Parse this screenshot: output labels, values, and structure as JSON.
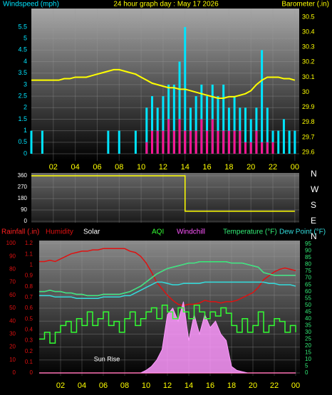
{
  "chart_data": [
    {
      "type": "bar",
      "title": "24 hour graph day : May 17 2026",
      "x": [
        0,
        0.5,
        1,
        1.5,
        2,
        2.5,
        3,
        3.5,
        4,
        4.5,
        5,
        5.5,
        6,
        6.5,
        7,
        7.5,
        8,
        8.5,
        9,
        9.5,
        10,
        10.5,
        11,
        11.5,
        12,
        12.5,
        13,
        13.5,
        14,
        14.5,
        15,
        15.5,
        16,
        16.5,
        17,
        17.5,
        18,
        18.5,
        19,
        19.5,
        20,
        20.5,
        21,
        21.5,
        22,
        22.5,
        23,
        23.5,
        24
      ],
      "xlim": [
        0,
        24.4
      ],
      "xticks": [
        {
          "value": 2,
          "label": "02"
        },
        {
          "value": 4,
          "label": "04"
        },
        {
          "value": 6,
          "label": "06"
        },
        {
          "value": 8,
          "label": "08"
        },
        10,
        12,
        14,
        16,
        18,
        20,
        22,
        {
          "value": 24,
          "label": "00"
        }
      ],
      "ylim": [
        0,
        5.5
      ],
      "yticks": [
        0,
        0.5,
        1,
        1.5,
        2,
        2.5,
        3,
        3.5,
        4,
        4.5,
        5,
        5.5
      ],
      "y2lim": [
        29.6,
        30.5
      ],
      "y2ticks": [
        29.6,
        29.7,
        29.8,
        29.9,
        30,
        30.1,
        30.2,
        30.3,
        30.4,
        30.5
      ],
      "grid": true,
      "series": [
        {
          "name": "Windspeed (mph)",
          "color": "#00e5ff",
          "values": [
            1,
            0,
            1,
            0,
            0,
            0,
            0,
            0,
            0,
            0,
            0,
            0,
            0,
            0,
            1,
            0,
            1,
            0,
            0,
            1,
            0,
            2,
            2.5,
            2,
            2.5,
            3,
            3,
            4,
            5.5,
            2,
            2.5,
            3,
            2.5,
            3,
            2.5,
            3,
            2,
            2.5,
            2,
            2,
            1.5,
            2,
            4.5,
            2,
            1,
            1,
            1.5,
            1,
            1
          ]
        },
        {
          "color": "#ff1493",
          "values": [
            0,
            0,
            0,
            0,
            0,
            0,
            0,
            0,
            0,
            0,
            0,
            0,
            0,
            0,
            0,
            0,
            0,
            0,
            0,
            0,
            0,
            0.5,
            1,
            1,
            1,
            1.5,
            1,
            1.5,
            1,
            1,
            1,
            1.5,
            1,
            1.5,
            1,
            1,
            1,
            1,
            1,
            0.5,
            0.5,
            1,
            0.5,
            0.5,
            0.5,
            0,
            0,
            0,
            0
          ]
        },
        {
          "name": "Barometer (.in)",
          "axis": "y2",
          "color": "#ffff00",
          "values": [
            30.08,
            30.08,
            30.08,
            30.08,
            30.08,
            30.08,
            30.09,
            30.09,
            30.1,
            30.1,
            30.1,
            30.11,
            30.12,
            30.13,
            30.14,
            30.15,
            30.15,
            30.14,
            30.13,
            30.12,
            30.1,
            30.08,
            30.06,
            30.05,
            30.04,
            30.03,
            30.03,
            30.02,
            30.02,
            30.01,
            30,
            29.99,
            29.98,
            29.97,
            29.96,
            29.96,
            29.97,
            29.97,
            29.98,
            29.99,
            30.01,
            30.05,
            30.08,
            30.1,
            30.1,
            30.1,
            30.09,
            30.09,
            30.08
          ]
        }
      ]
    },
    {
      "type": "line",
      "x": [
        0,
        14,
        14,
        24
      ],
      "xlim": [
        0,
        24.4
      ],
      "xticks": [
        2,
        4,
        6,
        8,
        10,
        12,
        14,
        16,
        18,
        20,
        22,
        24
      ],
      "ylim": [
        0,
        360
      ],
      "yticks": [
        0,
        90,
        180,
        270,
        360
      ],
      "y2lim": [
        0,
        360
      ],
      "y2ticks": [
        {
          "value": 0,
          "label": "N"
        },
        {
          "value": 90,
          "label": "E"
        },
        {
          "value": 180,
          "label": "S"
        },
        {
          "value": 270,
          "label": "W"
        },
        {
          "value": 360,
          "label": "N"
        }
      ],
      "grid": true,
      "series": [
        {
          "color": "#ffff00",
          "values": [
            360,
            360,
            80,
            80
          ]
        }
      ]
    },
    {
      "type": "line",
      "x": [
        0,
        0.5,
        1,
        1.5,
        2,
        2.5,
        3,
        3.5,
        4,
        4.5,
        5,
        5.5,
        6,
        6.5,
        7,
        7.5,
        8,
        8.5,
        9,
        9.5,
        10,
        10.5,
        11,
        11.5,
        12,
        12.5,
        13,
        13.5,
        14,
        14.5,
        15,
        15.5,
        16,
        16.5,
        17,
        17.5,
        18,
        18.5,
        19,
        19.5,
        20,
        20.5,
        21,
        21.5,
        22,
        22.5,
        23,
        23.5,
        24
      ],
      "xlim": [
        0,
        24.4
      ],
      "xticks": [
        {
          "value": 2,
          "label": "02"
        },
        {
          "value": 4,
          "label": "04"
        },
        {
          "value": 6,
          "label": "06"
        },
        {
          "value": 8,
          "label": "08"
        },
        10,
        12,
        14,
        16,
        18,
        20,
        22,
        {
          "value": 24,
          "label": "00"
        }
      ],
      "ylim": [
        0,
        100
      ],
      "yticks": [
        0,
        10,
        20,
        30,
        40,
        50,
        60,
        70,
        80,
        90,
        100
      ],
      "y3lim": [
        0,
        1.2
      ],
      "y3ticks": [
        0,
        0.1,
        0.2,
        0.3,
        0.4,
        0.5,
        0.6,
        0.7,
        0.8,
        0.9,
        1,
        1.1,
        1.2
      ],
      "y2lim": [
        0,
        95
      ],
      "y2ticks": [
        0,
        5,
        10,
        15,
        20,
        25,
        30,
        35,
        40,
        45,
        50,
        55,
        60,
        65,
        70,
        75,
        80,
        85,
        90,
        95
      ],
      "grid": true,
      "annotation": "Sun Rise",
      "series": [
        {
          "name": "Rainfall (.in)",
          "axis": "y3",
          "color": "#ff2020",
          "values": [
            0,
            0,
            0,
            0,
            0,
            0,
            0,
            0,
            0,
            0,
            0,
            0,
            0,
            0,
            0,
            0,
            0,
            0,
            0,
            0,
            0,
            0,
            0,
            0,
            0,
            0,
            0,
            0,
            0,
            0,
            0,
            0,
            0,
            0,
            0,
            0,
            0,
            0,
            0,
            0,
            0,
            0,
            0,
            0,
            0,
            0,
            0,
            0,
            0
          ]
        },
        {
          "name": "Humidity",
          "color": "#e01010",
          "values": [
            86,
            86,
            87,
            86,
            88,
            90,
            92,
            93,
            94,
            94,
            95,
            95,
            96,
            96,
            96,
            96,
            96,
            94,
            93,
            90,
            85,
            78,
            70,
            65,
            60,
            56,
            53,
            52,
            53,
            53,
            54,
            56,
            55,
            55,
            54,
            55,
            55,
            56,
            58,
            60,
            62,
            66,
            72,
            75,
            78,
            80,
            81,
            80,
            79
          ]
        },
        {
          "name": "Solar",
          "label_color": "#ffffff",
          "color": "#ff99ff",
          "fill": true,
          "values": [
            0,
            0,
            0,
            0,
            0,
            0,
            0,
            0,
            0,
            0,
            0,
            0,
            0,
            0,
            0,
            0,
            0,
            0,
            0,
            0,
            2,
            5,
            10,
            18,
            45,
            50,
            40,
            55,
            25,
            45,
            30,
            45,
            35,
            40,
            30,
            25,
            5,
            2,
            1,
            0,
            0,
            0,
            0,
            0,
            0,
            0,
            0,
            0,
            0
          ]
        },
        {
          "name": "AQI",
          "axis": "y2",
          "color": "#33ff33",
          "step": true,
          "values": [
            25,
            30,
            22,
            30,
            35,
            38,
            30,
            40,
            35,
            45,
            35,
            40,
            45,
            35,
            38,
            30,
            40,
            45,
            35,
            40,
            45,
            48,
            40,
            50,
            45,
            40,
            48,
            45,
            40,
            50,
            45,
            40,
            45,
            42,
            48,
            44,
            35,
            30,
            40,
            30,
            35,
            45,
            30,
            35,
            40,
            38,
            30,
            35,
            30
          ]
        },
        {
          "name": "Windchill",
          "axis": "y2",
          "color": "#ff55ff",
          "values": [
            60,
            60,
            61,
            60,
            60,
            59,
            59,
            58,
            58,
            57,
            57,
            57,
            58,
            58,
            58,
            58,
            59,
            60,
            62,
            64,
            67,
            70,
            73,
            75,
            77,
            78,
            79,
            80,
            81,
            81,
            82,
            82,
            82,
            82,
            82,
            82,
            81,
            81,
            81,
            80,
            79,
            78,
            74,
            73,
            72,
            72,
            72,
            72,
            72
          ]
        },
        {
          "name": "Temperature (°F)",
          "axis": "y2",
          "color": "#33ee77",
          "values": [
            60,
            60,
            61,
            60,
            60,
            59,
            59,
            58,
            58,
            57,
            57,
            57,
            58,
            58,
            58,
            58,
            59,
            60,
            62,
            64,
            67,
            70,
            73,
            75,
            77,
            78,
            79,
            80,
            81,
            81,
            82,
            82,
            82,
            82,
            82,
            82,
            81,
            81,
            81,
            80,
            79,
            78,
            74,
            73,
            72,
            72,
            72,
            72,
            72
          ]
        },
        {
          "name": "Dew Point (°F)",
          "axis": "y2",
          "color": "#33dddd",
          "values": [
            57,
            57,
            57,
            56,
            56,
            56,
            56,
            55,
            55,
            55,
            55,
            55,
            56,
            56,
            56,
            56,
            57,
            57,
            59,
            61,
            63,
            65,
            67,
            67,
            66,
            65,
            65,
            66,
            66,
            66,
            66,
            67,
            67,
            67,
            67,
            67,
            67,
            67,
            67,
            67,
            67,
            67,
            67,
            66,
            66,
            65,
            65,
            65,
            64
          ]
        }
      ]
    }
  ]
}
